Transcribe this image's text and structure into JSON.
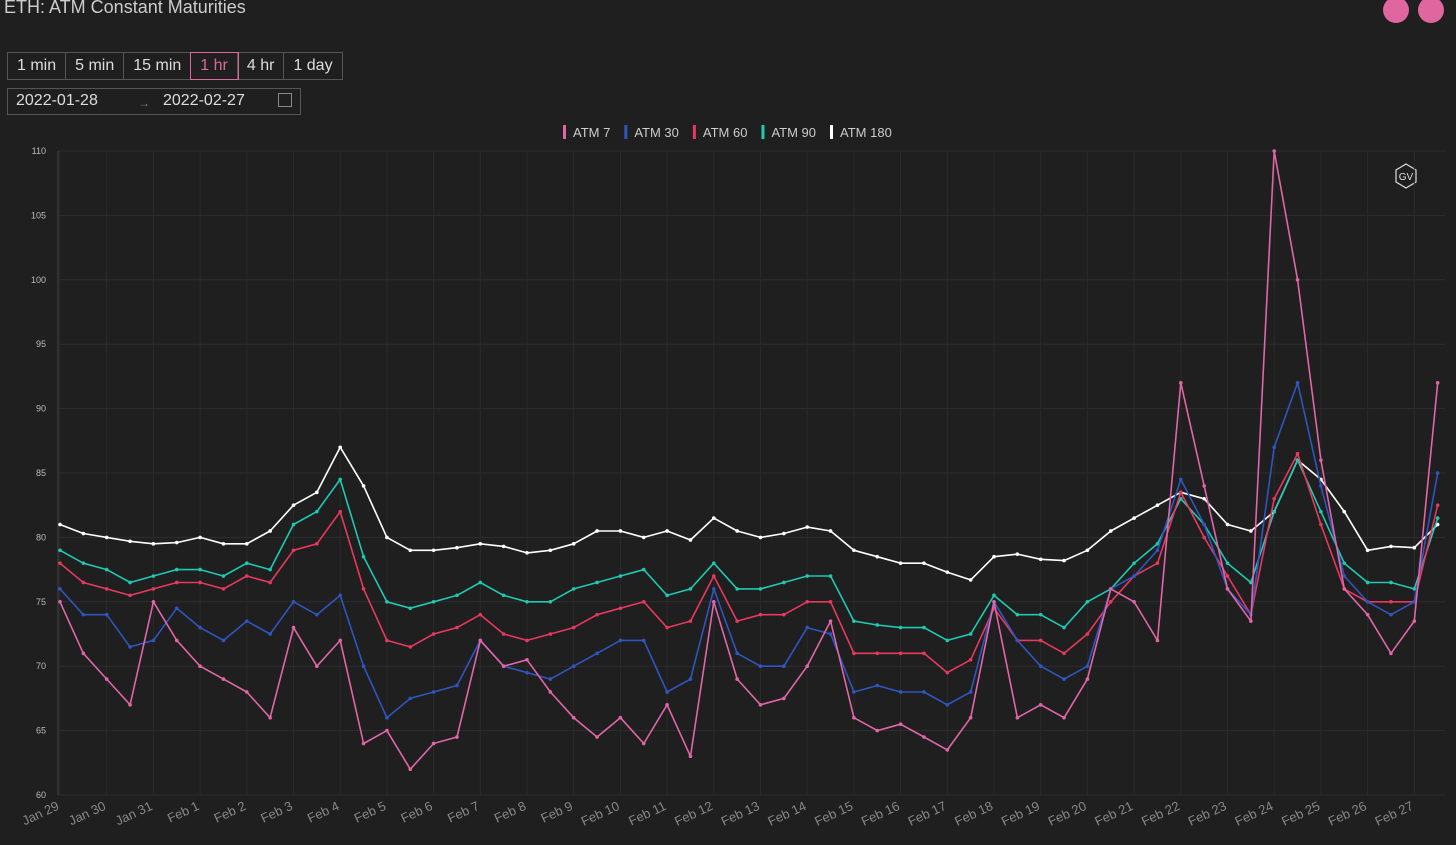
{
  "header": {
    "title": "ETH: ATM Constant Maturities"
  },
  "intervals": {
    "options": [
      "1 min",
      "5 min",
      "15 min",
      "1 hr",
      "4 hr",
      "1 day"
    ],
    "selected": "1 hr"
  },
  "date_range": {
    "start": "2022-01-28",
    "end": "2022-02-27"
  },
  "logo": "GV",
  "chart_data": {
    "type": "line",
    "categories": [
      "Jan 29",
      null,
      "Jan 30",
      null,
      "Jan 31",
      null,
      "Feb 1",
      null,
      "Feb 2",
      null,
      "Feb 3",
      null,
      "Feb 4",
      null,
      "Feb 5",
      null,
      "Feb 6",
      null,
      "Feb 7",
      null,
      "Feb 8",
      null,
      "Feb 9",
      null,
      "Feb 10",
      null,
      "Feb 11",
      null,
      "Feb 12",
      null,
      "Feb 13",
      null,
      "Feb 14",
      null,
      "Feb 15",
      null,
      "Feb 16",
      null,
      "Feb 17",
      null,
      "Feb 18",
      null,
      "Feb 19",
      null,
      "Feb 20",
      null,
      "Feb 21",
      null,
      "Feb 22",
      null,
      "Feb 23",
      null,
      "Feb 24",
      null,
      "Feb 25",
      null,
      "Feb 26",
      null,
      "Feb 27",
      null
    ],
    "series": [
      {
        "name": "ATM 7",
        "color": "#e066a8",
        "values": [
          75,
          71,
          69,
          67,
          75,
          72,
          70,
          69,
          68,
          66,
          73,
          70,
          72,
          64,
          65,
          62,
          64,
          64.5,
          72,
          70,
          70.5,
          68,
          66,
          64.5,
          66,
          64,
          67,
          63,
          75,
          69,
          67,
          67.5,
          70,
          73.5,
          66,
          65,
          65.5,
          64.5,
          63.5,
          66,
          75,
          66,
          67,
          66,
          69,
          76,
          75,
          72,
          92,
          84,
          76,
          73.5,
          110,
          100,
          86,
          76,
          74,
          71,
          73.5,
          92
        ]
      },
      {
        "name": "ATM 30",
        "color": "#2f56c0",
        "values": [
          76,
          74,
          74,
          71.5,
          72,
          74.5,
          73,
          72,
          73.5,
          72.5,
          75,
          74,
          75.5,
          70,
          66,
          67.5,
          68,
          68.5,
          72,
          70,
          69.5,
          69,
          70,
          71,
          72,
          72,
          68,
          69,
          76,
          71,
          70,
          70,
          73,
          72.5,
          68,
          68.5,
          68,
          68,
          67,
          68,
          75,
          72,
          70,
          69,
          70,
          76,
          77,
          79,
          84.5,
          81,
          76,
          74,
          87,
          92,
          84,
          77,
          75,
          74,
          75,
          85
        ]
      },
      {
        "name": "ATM 60",
        "color": "#e8385e",
        "values": [
          78,
          76.5,
          76,
          75.5,
          76,
          76.5,
          76.5,
          76,
          77,
          76.5,
          79,
          79.5,
          82,
          76,
          72,
          71.5,
          72.5,
          73,
          74,
          72.5,
          72,
          72.5,
          73,
          74,
          74.5,
          75,
          73,
          73.5,
          77,
          73.5,
          74,
          74,
          75,
          75,
          71,
          71,
          71,
          71,
          69.5,
          70.5,
          74.5,
          72,
          72,
          71,
          72.5,
          75,
          77,
          78,
          83.5,
          80,
          77,
          74,
          83,
          86.5,
          81,
          76,
          75,
          75,
          75,
          82.5
        ]
      },
      {
        "name": "ATM 90",
        "color": "#1fc9b2",
        "values": [
          79,
          78,
          77.5,
          76.5,
          77,
          77.5,
          77.5,
          77,
          78,
          77.5,
          81,
          82,
          84.5,
          78.5,
          75,
          74.5,
          75,
          75.5,
          76.5,
          75.5,
          75,
          75,
          76,
          76.5,
          77,
          77.5,
          75.5,
          76,
          78,
          76,
          76,
          76.5,
          77,
          77,
          73.5,
          73.2,
          73,
          73,
          72,
          72.5,
          75.5,
          74,
          74,
          73,
          75,
          76,
          78,
          79.5,
          83,
          81,
          78,
          76.5,
          82,
          86,
          82,
          78,
          76.5,
          76.5,
          76,
          81.5
        ]
      },
      {
        "name": "ATM 180",
        "color": "#ffffff",
        "values": [
          81,
          80.3,
          80,
          79.7,
          79.5,
          79.6,
          80,
          79.5,
          79.5,
          80.5,
          82.5,
          83.5,
          87,
          84,
          80,
          79,
          79,
          79.2,
          79.5,
          79.3,
          78.8,
          79,
          79.5,
          80.5,
          80.5,
          80,
          80.5,
          79.8,
          81.5,
          80.5,
          80,
          80.3,
          80.8,
          80.5,
          79,
          78.5,
          78,
          78,
          77.3,
          76.7,
          78.5,
          78.7,
          78.3,
          78.2,
          79,
          80.5,
          81.5,
          82.5,
          83.5,
          83,
          81,
          80.5,
          82,
          86,
          84.5,
          82,
          79,
          79.3,
          79.2,
          81
        ]
      }
    ],
    "ylim": [
      60,
      110
    ],
    "yticks": [
      60,
      65,
      70,
      75,
      80,
      85,
      90,
      95,
      100,
      105,
      110
    ],
    "grid": true,
    "legend": "top"
  }
}
